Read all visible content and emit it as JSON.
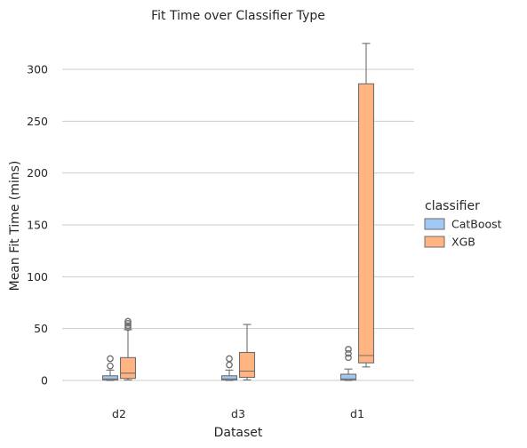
{
  "chart_data": {
    "type": "box",
    "title": "Fit Time over Classifier Type",
    "xlabel": "Dataset",
    "ylabel": "Mean Fit Time (mins)",
    "categories": [
      "d2",
      "d3",
      "d1"
    ],
    "ylim": [
      -26,
      335
    ],
    "yticks": [
      0,
      50,
      100,
      150,
      200,
      250,
      300
    ],
    "grid": "horizontal",
    "legend": {
      "title": "classifier",
      "placement": "right"
    },
    "series": [
      {
        "name": "CatBoost",
        "color": "#a1c9f4",
        "boxes": [
          {
            "whisker_low": 0,
            "q1": 0.5,
            "median": 1.5,
            "q3": 4.5,
            "whisker_high": 10,
            "outliers": [
              14,
              21
            ]
          },
          {
            "whisker_low": 0,
            "q1": 0.5,
            "median": 1.5,
            "q3": 4.5,
            "whisker_high": 10,
            "outliers": [
              15,
              21
            ]
          },
          {
            "whisker_low": 0,
            "q1": 0.5,
            "median": 1.5,
            "q3": 6,
            "whisker_high": 11,
            "outliers": [
              22,
              26,
              30
            ]
          }
        ]
      },
      {
        "name": "XGB",
        "color": "#ffb482",
        "boxes": [
          {
            "whisker_low": 0.5,
            "q1": 2,
            "median": 7,
            "q3": 22,
            "whisker_high": 49,
            "outliers": [
              51,
              53,
              55,
              57
            ]
          },
          {
            "whisker_low": 0.5,
            "q1": 3,
            "median": 9,
            "q3": 27,
            "whisker_high": 54,
            "outliers": []
          },
          {
            "whisker_low": 13,
            "q1": 17,
            "median": 24,
            "q3": 286,
            "whisker_high": 325,
            "outliers": []
          }
        ]
      }
    ]
  }
}
